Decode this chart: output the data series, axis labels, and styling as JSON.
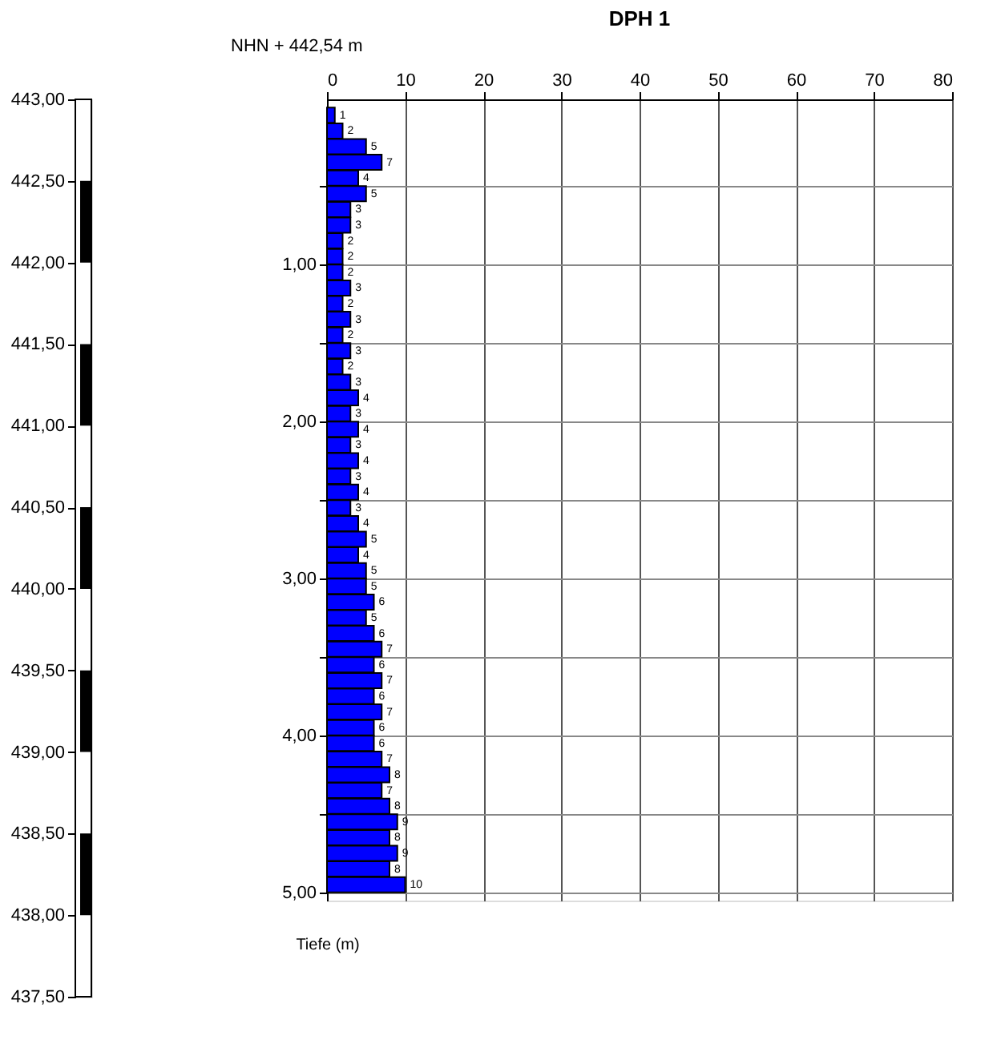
{
  "chart_data": {
    "type": "bar",
    "orientation": "horizontal",
    "title": "DPH 1",
    "ylabel": "Tiefe (m)",
    "annotations": [
      "NHN + 442,54 m"
    ],
    "x": [
      0.05,
      0.15,
      0.25,
      0.35,
      0.45,
      0.55,
      0.65,
      0.75,
      0.85,
      0.95,
      1.05,
      1.15,
      1.25,
      1.35,
      1.45,
      1.55,
      1.65,
      1.75,
      1.85,
      1.95,
      2.05,
      2.15,
      2.25,
      2.35,
      2.45,
      2.55,
      2.65,
      2.75,
      2.85,
      2.95,
      3.05,
      3.15,
      3.25,
      3.35,
      3.45,
      3.55,
      3.65,
      3.75,
      3.85,
      3.95,
      4.05,
      4.15,
      4.25,
      4.35,
      4.45,
      4.55,
      4.65,
      4.75,
      4.85,
      4.95
    ],
    "values": [
      1,
      2,
      5,
      7,
      4,
      5,
      3,
      3,
      2,
      2,
      2,
      3,
      2,
      3,
      2,
      3,
      2,
      3,
      4,
      3,
      4,
      3,
      4,
      3,
      4,
      3,
      4,
      5,
      4,
      5,
      5,
      6,
      5,
      6,
      7,
      6,
      7,
      6,
      7,
      6,
      6,
      7,
      8,
      7,
      8,
      9,
      8,
      9,
      8,
      10
    ],
    "color": "#0000ff",
    "data_labels": true,
    "grid": true,
    "x2lim": [
      0,
      80
    ],
    "x2ticks": [
      0,
      10,
      20,
      30,
      40,
      50,
      60,
      70,
      80
    ],
    "ylim": [
      5,
      0
    ],
    "yticks": [
      {
        "value": 0.5,
        "label": null
      },
      {
        "value": 1,
        "label": "1,00"
      },
      {
        "value": 1.5,
        "label": null
      },
      {
        "value": 2,
        "label": "2,00"
      },
      {
        "value": 2.5,
        "label": null
      },
      {
        "value": 3,
        "label": "3,00"
      },
      {
        "value": 3.5,
        "label": null
      },
      {
        "value": 4,
        "label": "4,00"
      },
      {
        "value": 4.5,
        "label": null
      },
      {
        "value": 5,
        "label": "5,00"
      }
    ],
    "y2lim": [
      437.5,
      443
    ],
    "y2ticks": [
      {
        "value": 443,
        "label": "443,00"
      },
      {
        "value": 442.5,
        "label": "442,50"
      },
      {
        "value": 442,
        "label": "442,00"
      },
      {
        "value": 441.5,
        "label": "441,50"
      },
      {
        "value": 441,
        "label": "441,00"
      },
      {
        "value": 440.5,
        "label": "440,50"
      },
      {
        "value": 440,
        "label": "440,00"
      },
      {
        "value": 439.5,
        "label": "439,50"
      },
      {
        "value": 439,
        "label": "439,00"
      },
      {
        "value": 438.5,
        "label": "438,50"
      },
      {
        "value": 438,
        "label": "438,00"
      },
      {
        "value": 437.5,
        "label": "437,50"
      }
    ]
  }
}
